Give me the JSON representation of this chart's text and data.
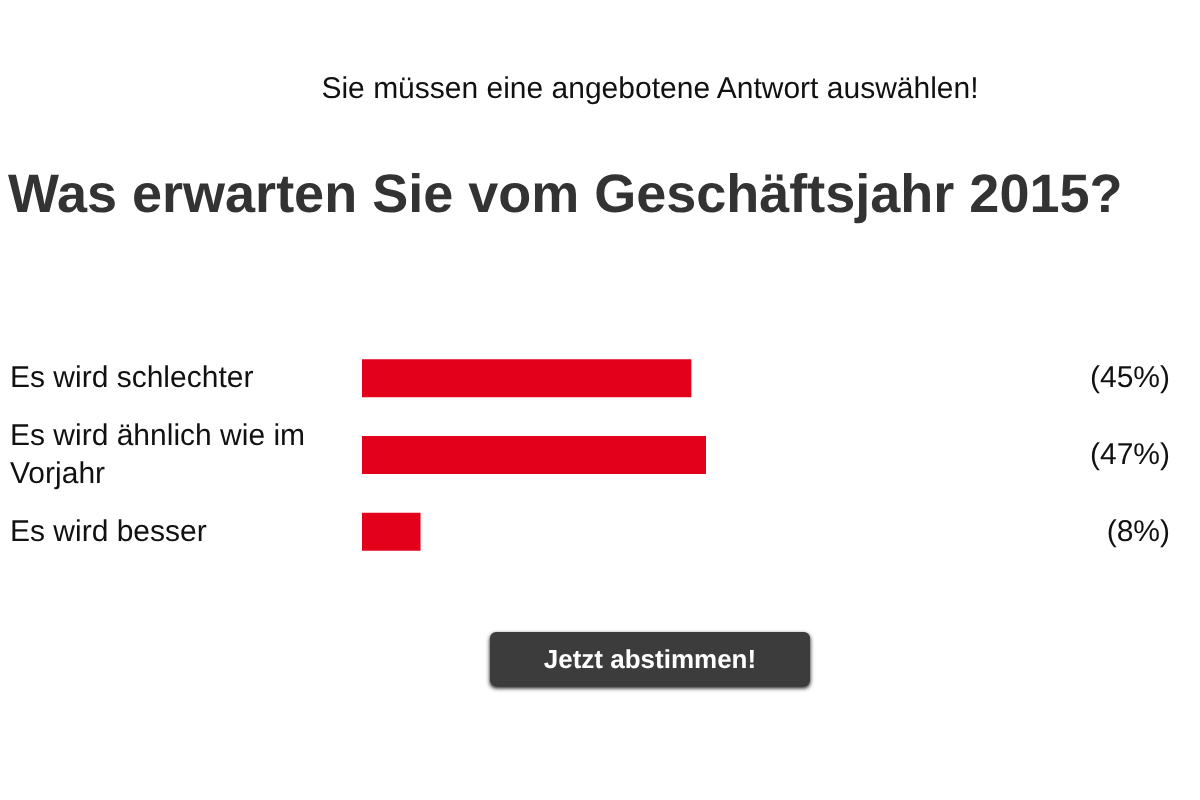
{
  "chart_data": {
    "type": "bar",
    "orientation": "horizontal",
    "title": "Was erwarten Sie vom Geschäftsjahr 2015?",
    "annotations": [
      "Sie müssen eine angebotene Antwort auswählen!",
      "Jetzt abstimmen!"
    ],
    "categories": [
      "Es wird schlechter",
      "Es wird ähnlich wie im Vorjahr",
      "Es wird besser"
    ],
    "values": [
      45,
      47,
      8
    ],
    "value_labels": [
      "(45%)",
      "(47%)",
      "(8%)"
    ],
    "color": "#e2001a"
  }
}
